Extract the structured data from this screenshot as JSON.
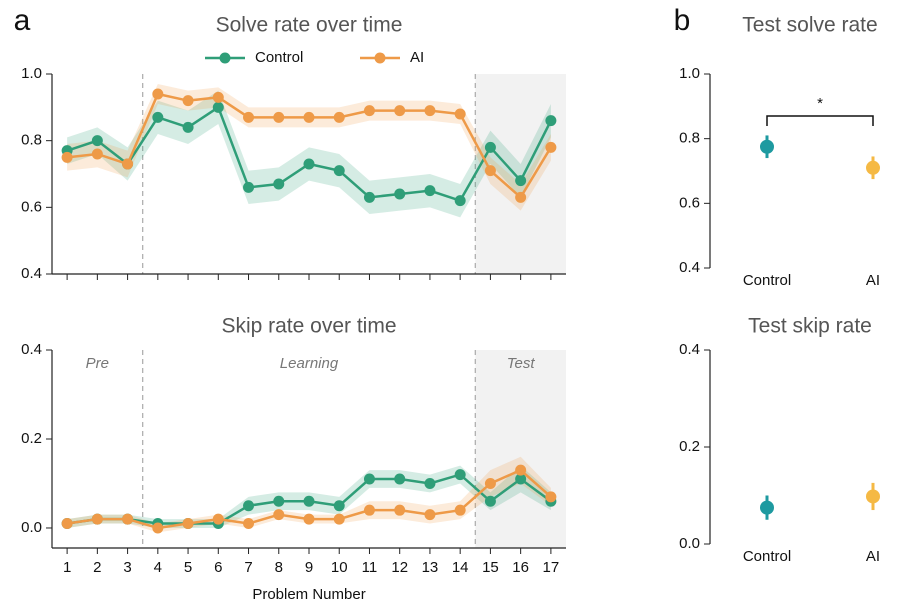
{
  "chart_data": [
    {
      "type": "line",
      "panel": "a",
      "title": "Solve rate over time",
      "x": [
        1,
        2,
        3,
        4,
        5,
        6,
        7,
        8,
        9,
        10,
        11,
        12,
        13,
        14,
        15,
        16,
        17
      ],
      "xlim": [
        0.5,
        17.5
      ],
      "ylim": [
        0.4,
        1.0
      ],
      "yticks": [
        0.4,
        0.6,
        0.8,
        {
          "value": 1,
          "label": "1.0"
        }
      ],
      "phase_boundaries": [
        3.5,
        14.5
      ],
      "shaded_xrange": [
        14.5,
        17.5
      ],
      "legend": "top",
      "series": [
        {
          "name": "Control",
          "color": "#2f9e78",
          "values": [
            0.77,
            0.8,
            0.73,
            0.87,
            0.84,
            0.9,
            0.66,
            0.67,
            0.73,
            0.71,
            0.63,
            0.64,
            0.65,
            0.62,
            0.78,
            0.68,
            0.86
          ],
          "ci": [
            0.04,
            0.04,
            0.05,
            0.05,
            0.05,
            0.05,
            0.05,
            0.05,
            0.05,
            0.05,
            0.05,
            0.05,
            0.05,
            0.05,
            0.05,
            0.05,
            0.05
          ]
        },
        {
          "name": "AI",
          "color": "#ee9a48",
          "values": [
            0.75,
            0.76,
            0.73,
            0.94,
            0.92,
            0.93,
            0.87,
            0.87,
            0.87,
            0.87,
            0.89,
            0.89,
            0.89,
            0.88,
            0.71,
            0.63,
            0.78
          ],
          "ci": [
            0.04,
            0.04,
            0.04,
            0.03,
            0.03,
            0.03,
            0.03,
            0.03,
            0.03,
            0.03,
            0.03,
            0.03,
            0.03,
            0.03,
            0.04,
            0.04,
            0.04
          ]
        }
      ]
    },
    {
      "type": "line",
      "title": "Skip rate over time",
      "xlabel": "Problem Number",
      "x": [
        1,
        2,
        3,
        4,
        5,
        6,
        7,
        8,
        9,
        10,
        11,
        12,
        13,
        14,
        15,
        16,
        17
      ],
      "xlim": [
        0.5,
        17.5
      ],
      "ylim": [
        -0.045,
        0.4
      ],
      "yticks": [
        {
          "value": 0,
          "label": "0.0"
        },
        0.2,
        0.4
      ],
      "phase_boundaries": [
        3.5,
        14.5
      ],
      "shaded_xrange": [
        14.5,
        17.5
      ],
      "phases": [
        "Pre",
        "Learning",
        "Test"
      ],
      "series": [
        {
          "name": "Control",
          "color": "#2f9e78",
          "values": [
            0.01,
            0.02,
            0.02,
            0.01,
            0.01,
            0.01,
            0.05,
            0.06,
            0.06,
            0.05,
            0.11,
            0.11,
            0.1,
            0.12,
            0.06,
            0.11,
            0.06
          ],
          "ci": [
            0.01,
            0.01,
            0.01,
            0.01,
            0.01,
            0.01,
            0.02,
            0.02,
            0.02,
            0.02,
            0.02,
            0.02,
            0.02,
            0.02,
            0.02,
            0.03,
            0.02
          ]
        },
        {
          "name": "AI",
          "color": "#ee9a48",
          "values": [
            0.01,
            0.02,
            0.02,
            0.0,
            0.01,
            0.02,
            0.01,
            0.03,
            0.02,
            0.02,
            0.04,
            0.04,
            0.03,
            0.04,
            0.1,
            0.13,
            0.07
          ],
          "ci": [
            0.01,
            0.01,
            0.01,
            0.01,
            0.01,
            0.01,
            0.01,
            0.01,
            0.01,
            0.01,
            0.02,
            0.02,
            0.02,
            0.02,
            0.03,
            0.03,
            0.02
          ]
        }
      ]
    },
    {
      "type": "pointrange",
      "panel": "b",
      "title": "Test solve rate",
      "categories": [
        "Control",
        "AI"
      ],
      "values": [
        0.775,
        0.71
      ],
      "errors": [
        0.035,
        0.035
      ],
      "colors": [
        "#1e9aa0",
        "#f5b944"
      ],
      "significance": "*",
      "ylim": [
        0.4,
        1.0
      ],
      "yticks": [
        0.4,
        0.6,
        0.8,
        {
          "value": 1,
          "label": "1.0"
        }
      ]
    },
    {
      "type": "pointrange",
      "title": "Test skip rate",
      "categories": [
        "Control",
        "AI"
      ],
      "values": [
        0.075,
        0.098
      ],
      "errors": [
        0.025,
        0.028
      ],
      "colors": [
        "#1e9aa0",
        "#f5b944"
      ],
      "ylim": [
        0,
        0.4
      ],
      "yticks": [
        {
          "value": 0,
          "label": "0.0"
        },
        0.2,
        0.4
      ]
    }
  ]
}
